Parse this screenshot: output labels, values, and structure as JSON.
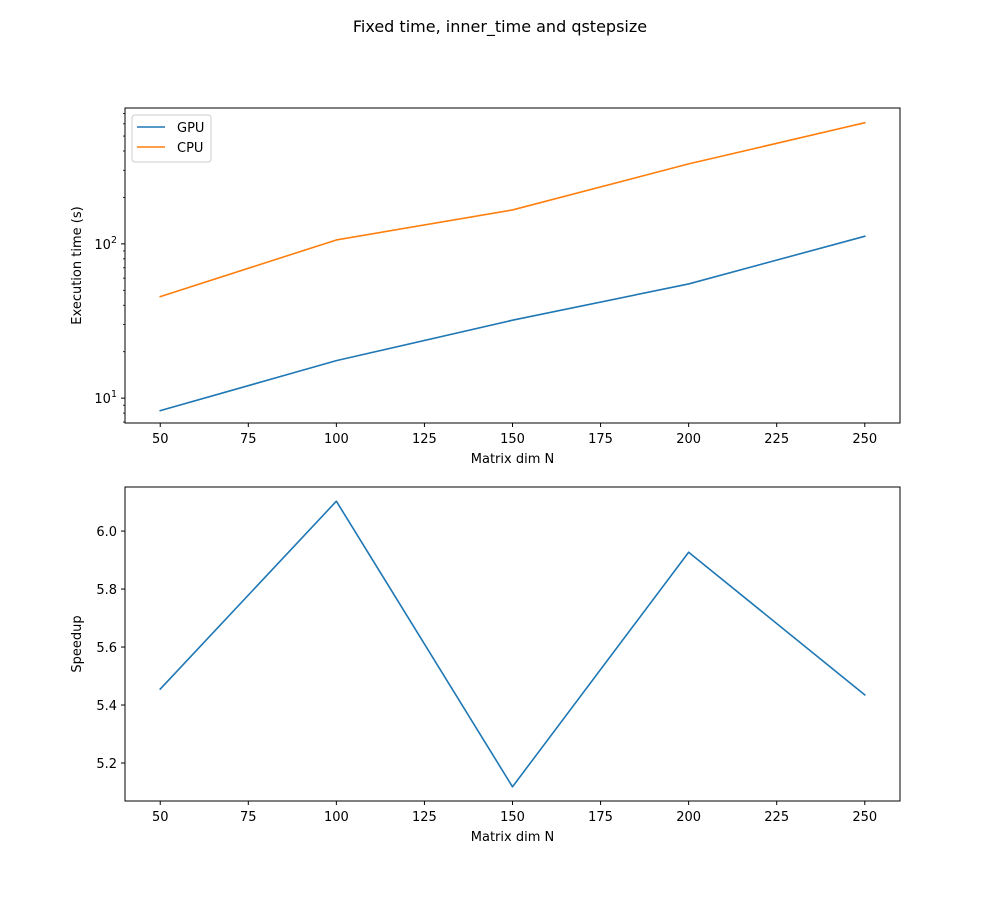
{
  "figure": {
    "title": "Fixed time, inner_time and qstepsize"
  },
  "chart_data": [
    {
      "type": "line",
      "x": [
        50,
        100,
        150,
        200,
        250
      ],
      "series": [
        {
          "name": "GPU",
          "color": "#1f77b4",
          "values": [
            8.3,
            17.5,
            32.0,
            55.0,
            112.0
          ]
        },
        {
          "name": "CPU",
          "color": "#ff7f0e",
          "values": [
            45.5,
            106.0,
            166.0,
            330.0,
            610.0
          ]
        }
      ],
      "xlabel": "Matrix dim N",
      "ylabel": "Execution time (s)",
      "xlim": [
        40,
        260
      ],
      "ylim": [
        6.9,
        760
      ],
      "yscale": "log",
      "xticks": [
        50,
        75,
        100,
        125,
        150,
        175,
        200,
        225,
        250
      ],
      "yticks": [
        {
          "value": 10,
          "base": "10",
          "exp": "1"
        },
        {
          "value": 100,
          "base": "10",
          "exp": "2"
        }
      ],
      "legend": "upper-left",
      "grid": false
    },
    {
      "type": "line",
      "x": [
        50,
        100,
        150,
        200,
        250
      ],
      "series": [
        {
          "color": "#1f77b4",
          "values": [
            5.455,
            6.103,
            5.118,
            5.927,
            5.435
          ]
        }
      ],
      "xlabel": "Matrix dim N",
      "ylabel": "Speedup",
      "xlim": [
        40,
        260
      ],
      "ylim": [
        5.069,
        6.152
      ],
      "yscale": "linear",
      "xticks": [
        50,
        75,
        100,
        125,
        150,
        175,
        200,
        225,
        250
      ],
      "yticks": [
        5.2,
        5.4,
        5.6,
        5.8,
        6.0
      ],
      "ytick_labels": [
        "5.2",
        "5.4",
        "5.6",
        "5.8",
        "6.0"
      ],
      "grid": false
    }
  ]
}
